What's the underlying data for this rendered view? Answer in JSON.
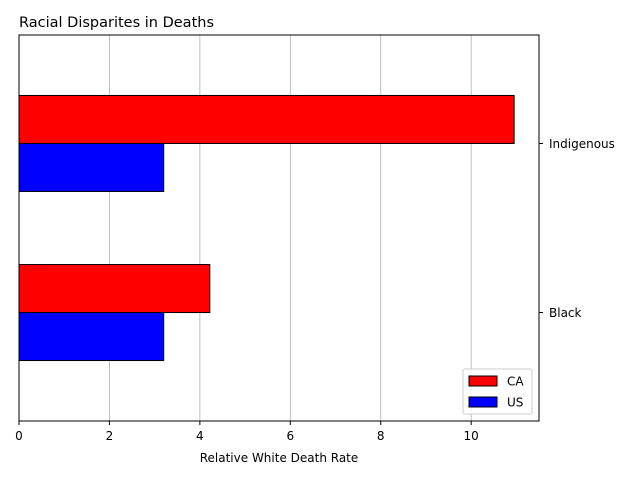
{
  "chart_data": {
    "type": "bar",
    "orientation": "horizontal",
    "title": "Racial Disparites in Deaths",
    "xlabel": "Relative White Death Rate",
    "ylabel": "",
    "categories": [
      "Black",
      "Indigenous"
    ],
    "series": [
      {
        "name": "CA",
        "color": "#ff0000",
        "values": [
          4.22,
          10.95
        ]
      },
      {
        "name": "US",
        "color": "#0000ff",
        "values": [
          3.2,
          3.2
        ]
      }
    ],
    "xlim": [
      0,
      11.5
    ],
    "xticks": [
      0,
      2,
      4,
      6,
      8,
      10
    ],
    "grid": "vertical",
    "y_tick_side": "right",
    "legend_position": "lower right"
  }
}
